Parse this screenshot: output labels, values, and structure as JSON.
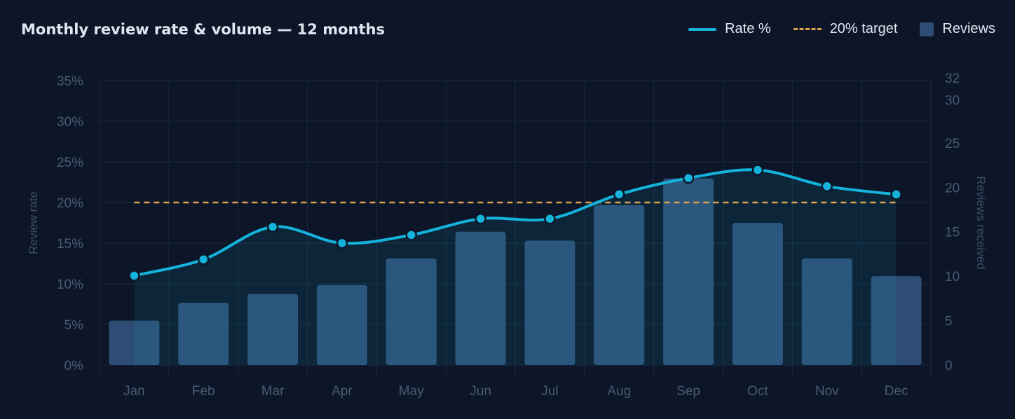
{
  "title": "Monthly review rate & volume — 12 months",
  "legend": {
    "rate": "Rate %",
    "target": "20% target",
    "reviews": "Reviews"
  },
  "colors": {
    "rate": "#14b3dc",
    "target": "#e0a44a",
    "bars": "#2e4d74",
    "background": "#0c1628"
  },
  "chart_data": {
    "type": "bar",
    "categories": [
      "Jan",
      "Feb",
      "Mar",
      "Apr",
      "May",
      "Jun",
      "Jul",
      "Aug",
      "Sep",
      "Oct",
      "Nov",
      "Dec"
    ],
    "series": [
      {
        "name": "Rate %",
        "type": "line",
        "axis": "left",
        "values": [
          11,
          13,
          17,
          15,
          16,
          18,
          18,
          21,
          23,
          24,
          22,
          21
        ]
      },
      {
        "name": "Reviews",
        "type": "bar",
        "axis": "right",
        "values": [
          5,
          7,
          8,
          9,
          12,
          15,
          14,
          18,
          21,
          16,
          12,
          10
        ]
      }
    ],
    "target": {
      "name": "20% target",
      "value": 20
    },
    "ylabel": "Review rate",
    "y2label": "Reviews received",
    "ylim": [
      0,
      35
    ],
    "y2lim": [
      0,
      32
    ],
    "yticks": [
      "0%",
      "5%",
      "10%",
      "15%",
      "20%",
      "25%",
      "30%",
      "35%"
    ],
    "y2ticks": [
      "0",
      "5",
      "10",
      "15",
      "20",
      "25",
      "30",
      "32"
    ],
    "grid": true,
    "legend_position": "top-right"
  }
}
